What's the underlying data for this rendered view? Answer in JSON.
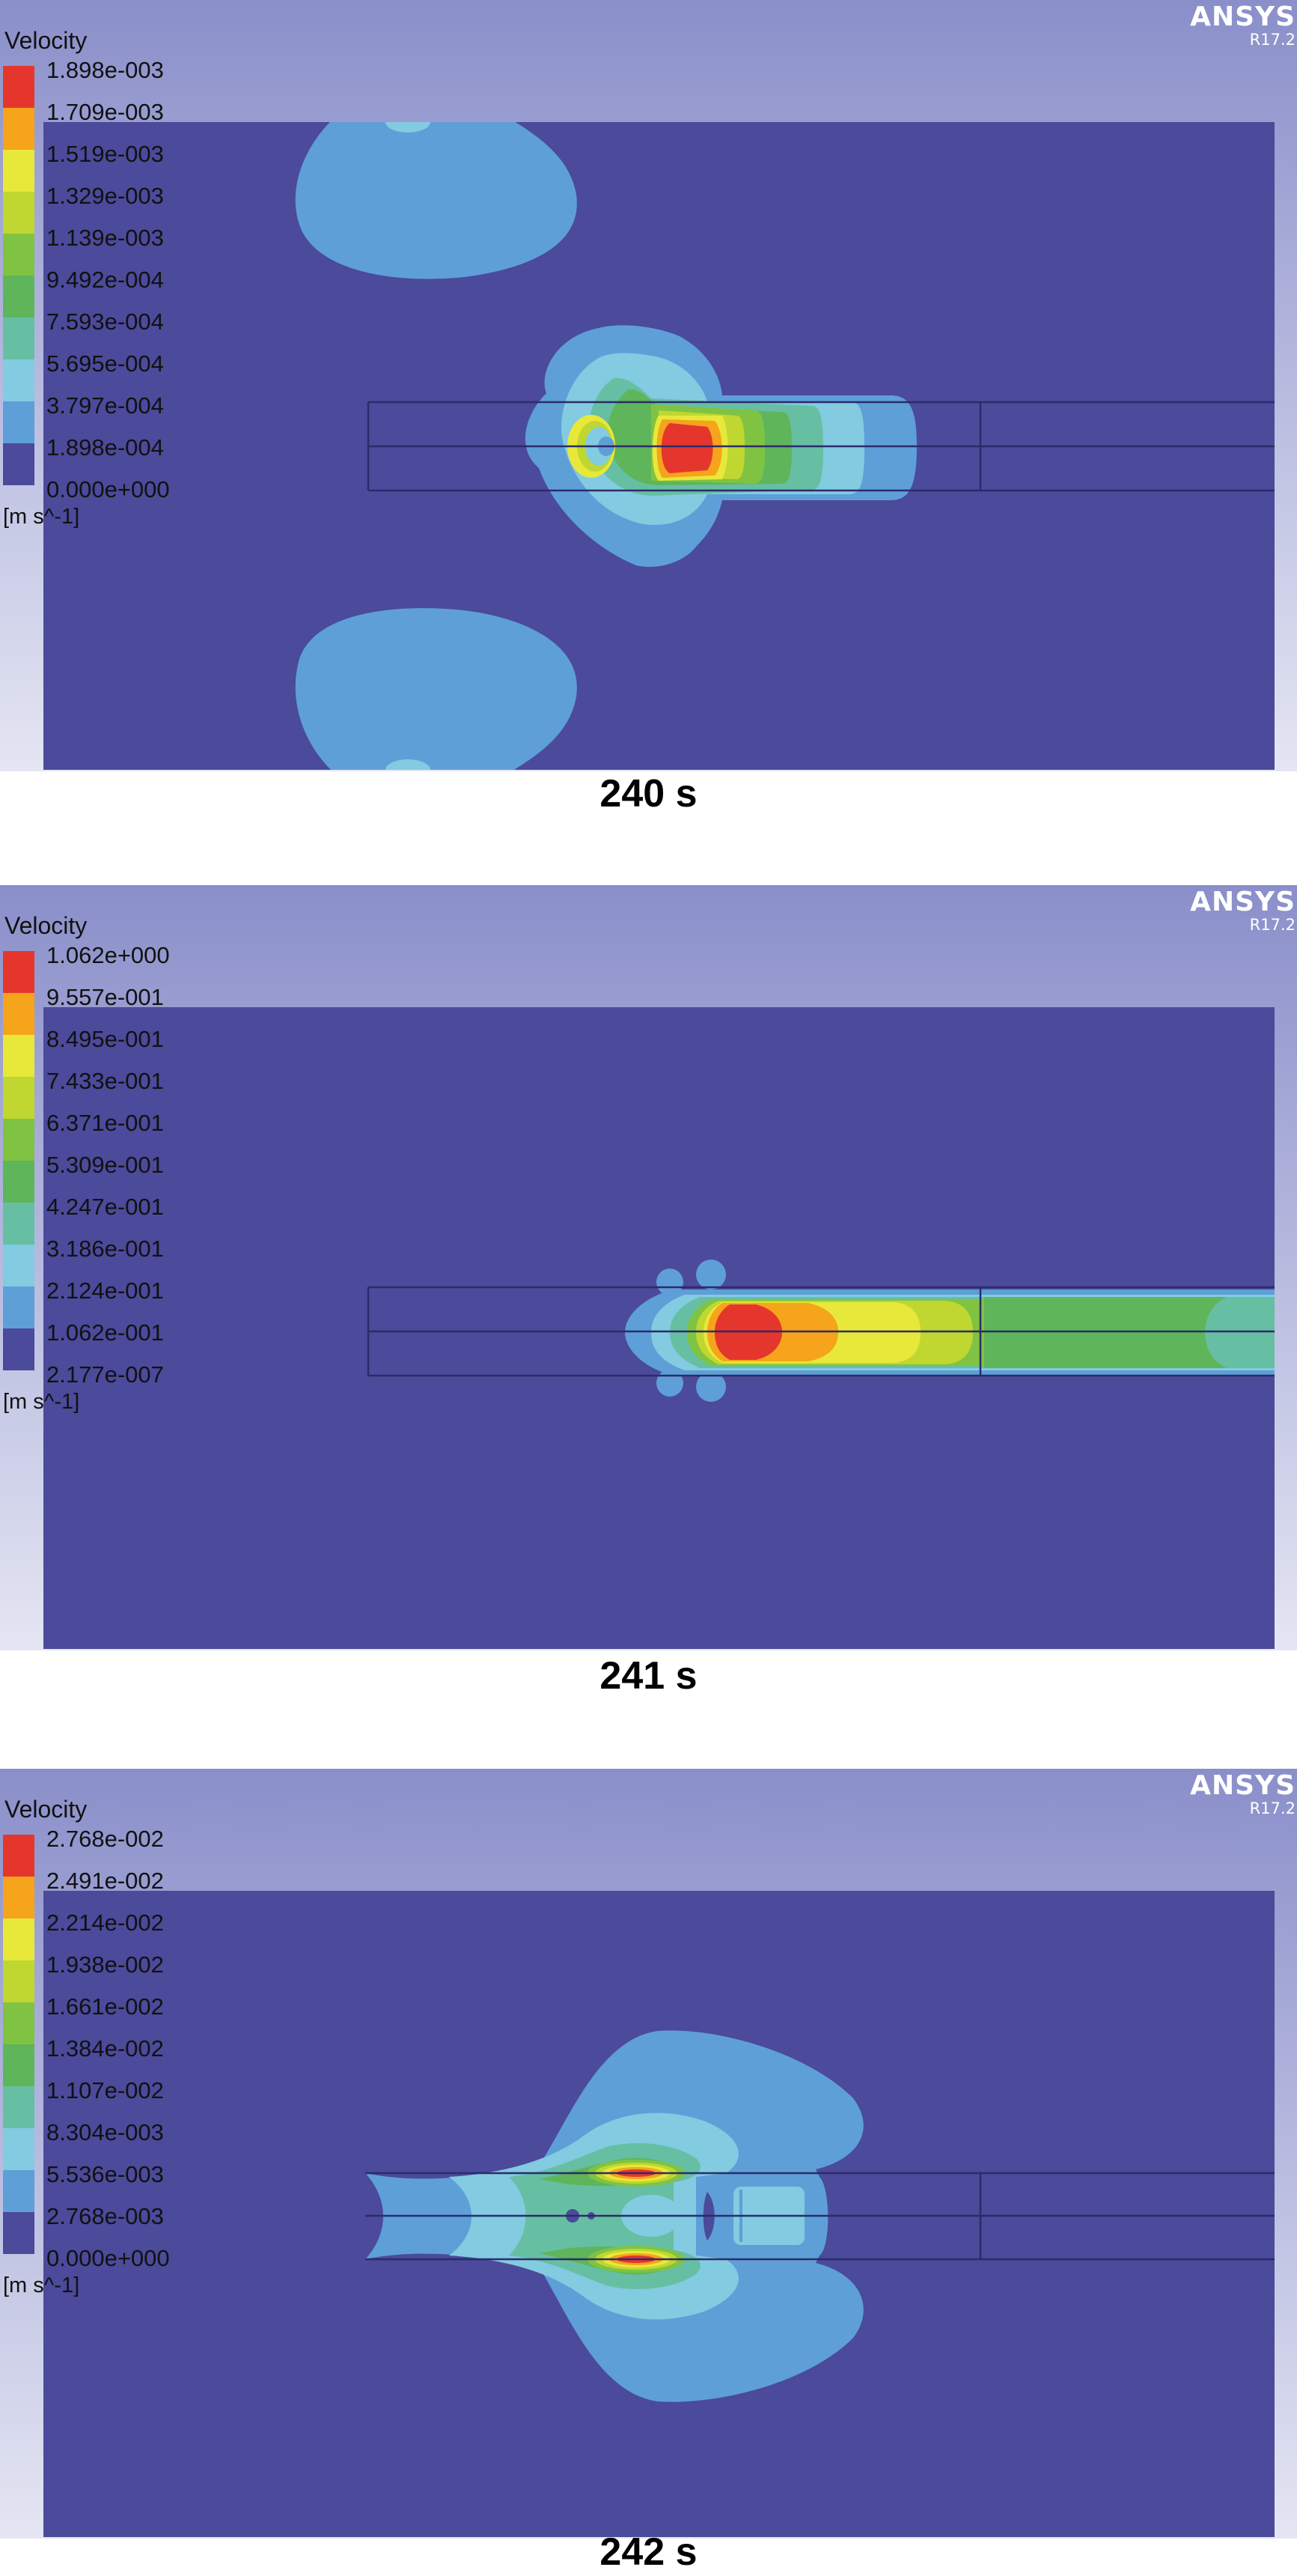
{
  "brand": {
    "name": "ANSYS",
    "version": "R17.2"
  },
  "colors": {
    "background": "#4b4a9b",
    "header_top": "#8a8fca",
    "header_bottom": "#e4e6f3",
    "colormap": [
      "#4b4a9b",
      "#5e9fd8",
      "#83cbe0",
      "#66bfa3",
      "#5fb55a",
      "#80c342",
      "#bfd730",
      "#e8e83a",
      "#f5a41b",
      "#e5362d"
    ]
  },
  "panels": [
    {
      "legend_title": "Velocity",
      "legend_labels": [
        "1.898e-003",
        "1.709e-003",
        "1.519e-003",
        "1.329e-003",
        "1.139e-003",
        "9.492e-004",
        "7.593e-004",
        "5.695e-004",
        "3.797e-004",
        "1.898e-004",
        "0.000e+000"
      ],
      "units": "[m s^-1]",
      "caption": "240 s"
    },
    {
      "legend_title": "Velocity",
      "legend_labels": [
        "1.062e+000",
        "9.557e-001",
        "8.495e-001",
        "7.433e-001",
        "6.371e-001",
        "5.309e-001",
        "4.247e-001",
        "3.186e-001",
        "2.124e-001",
        "1.062e-001",
        "2.177e-007"
      ],
      "units": "[m s^-1]",
      "caption": "241 s"
    },
    {
      "legend_title": "Velocity",
      "legend_labels": [
        "2.768e-002",
        "2.491e-002",
        "2.214e-002",
        "1.938e-002",
        "1.661e-002",
        "1.384e-002",
        "1.107e-002",
        "8.304e-003",
        "5.536e-003",
        "2.768e-003",
        "0.000e+000"
      ],
      "units": "[m s^-1]",
      "caption": "242 s"
    }
  ]
}
